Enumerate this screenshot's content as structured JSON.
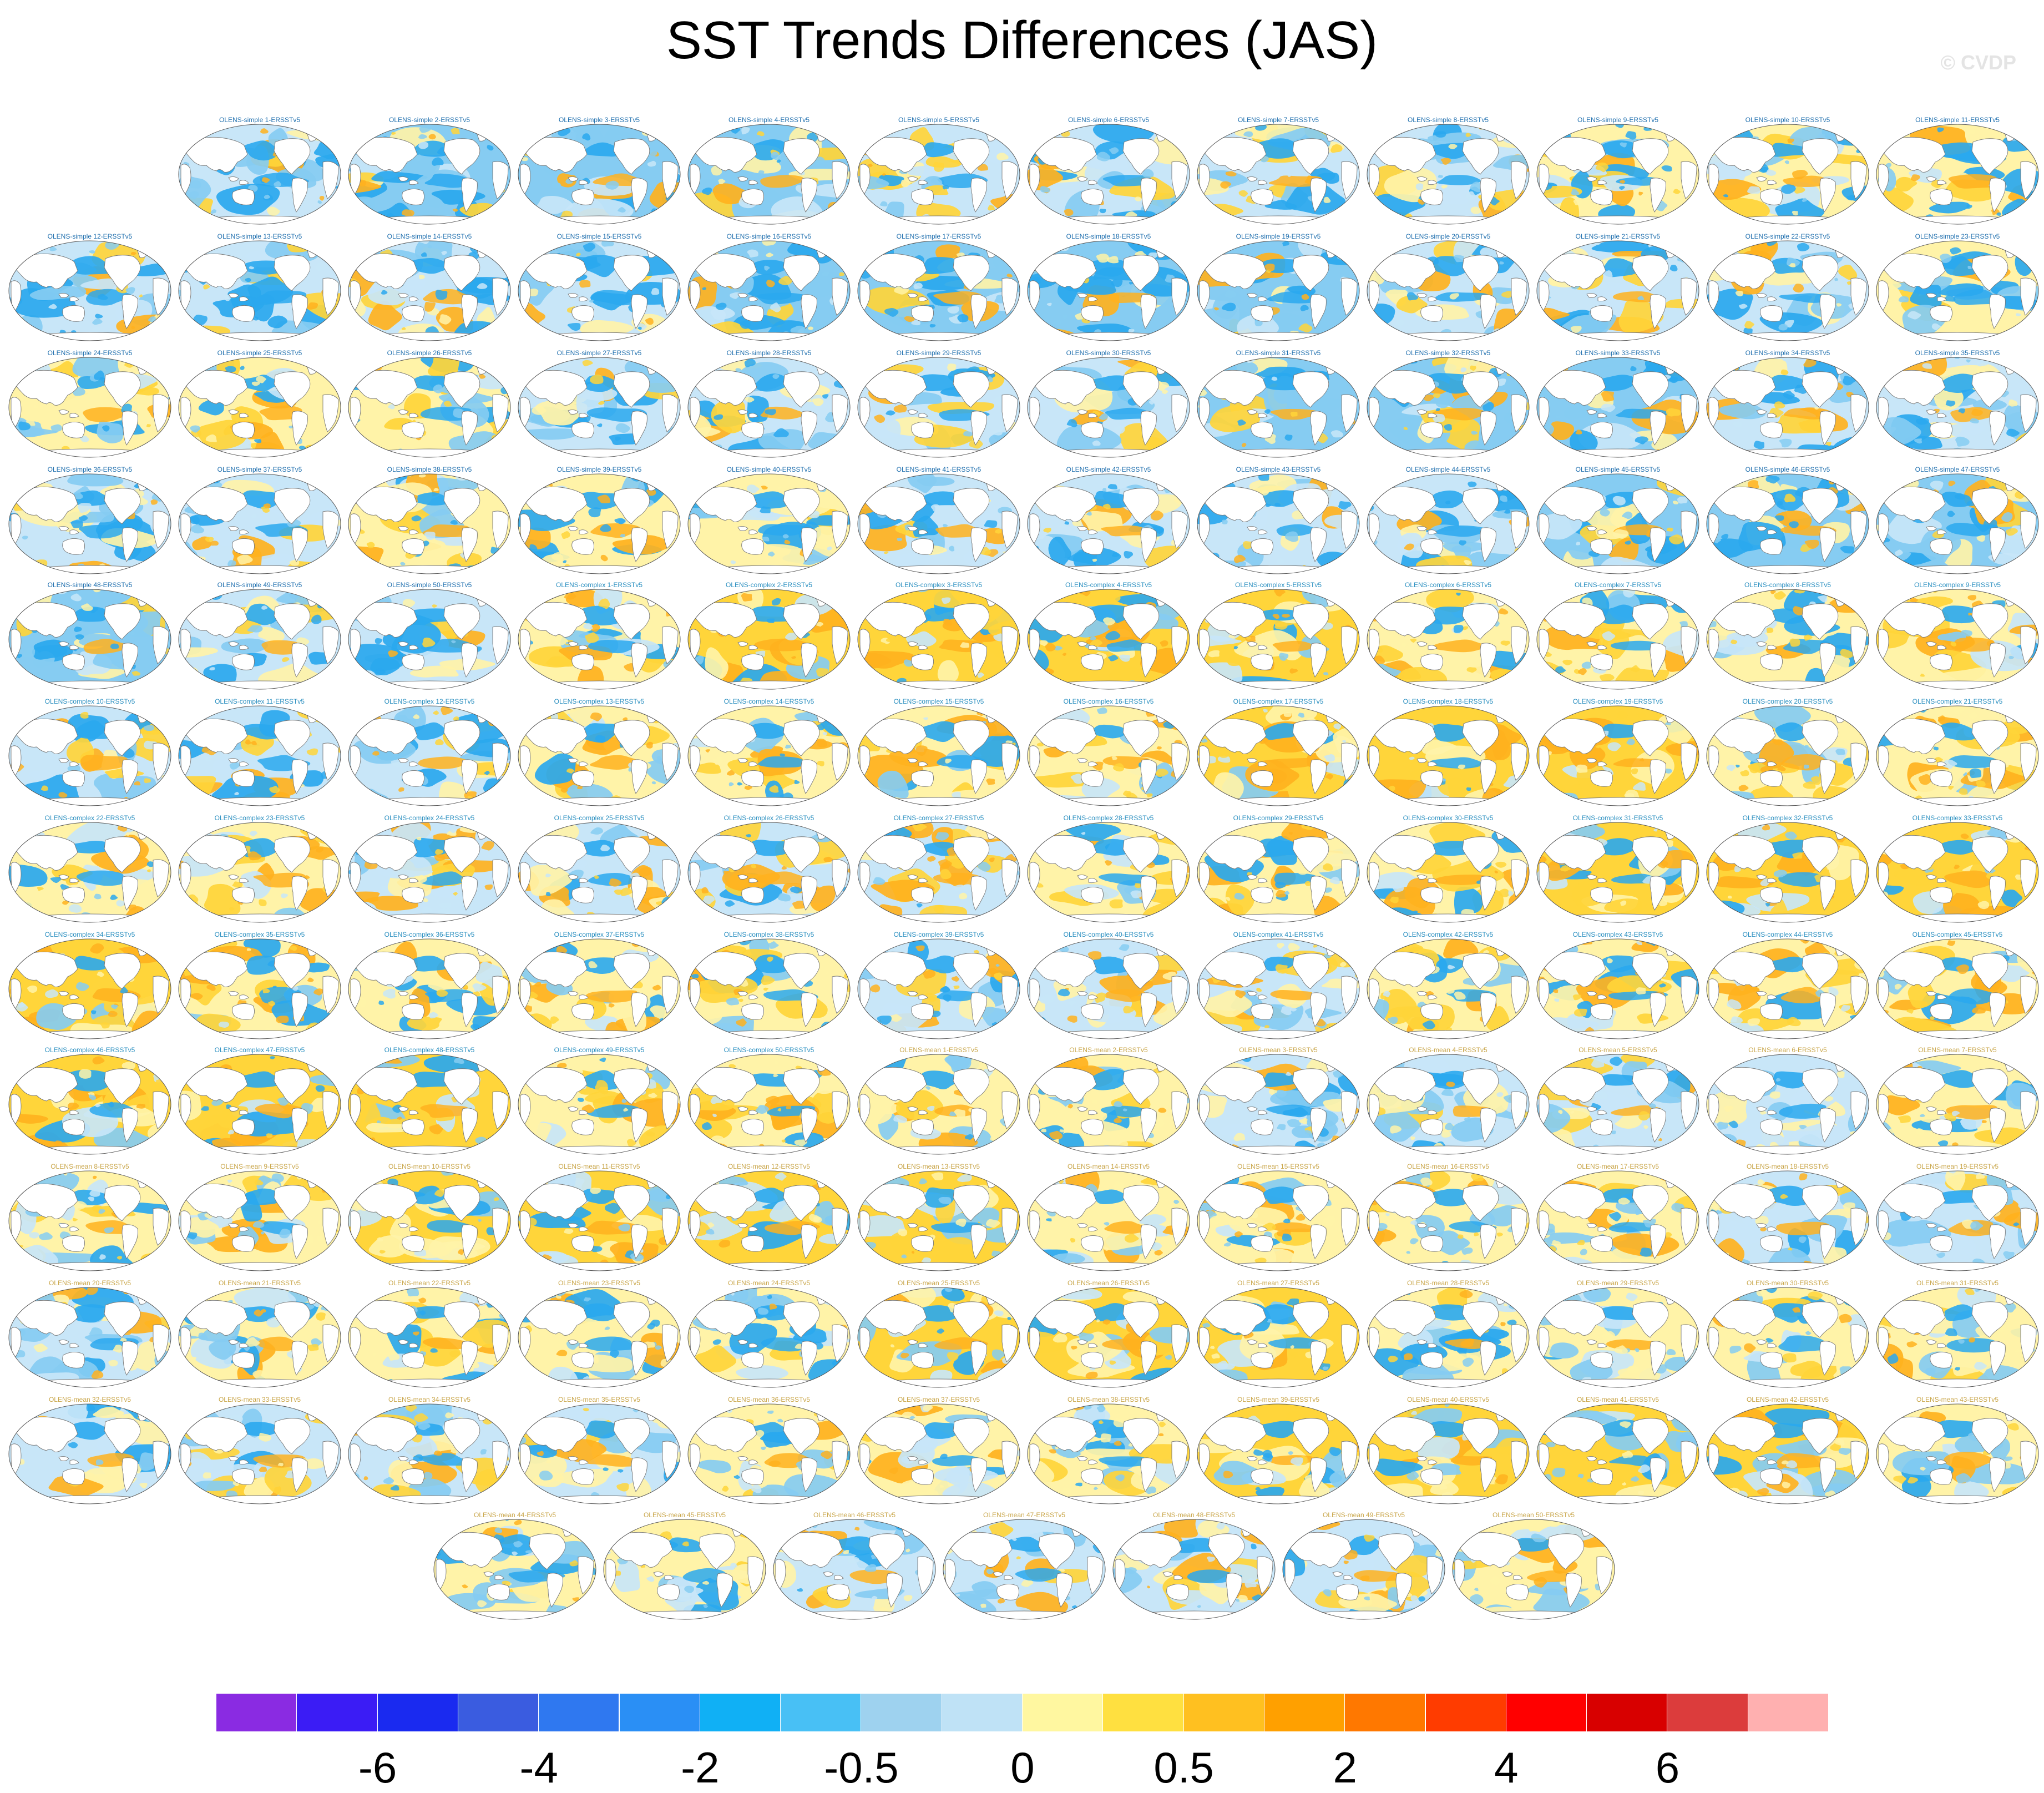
{
  "title": "SST Trends Differences (JAS)",
  "watermark": "© CVDP",
  "title_colors": {
    "simple": "#1f6fae",
    "complex": "#2a8fc0",
    "mean": "#c9a64a"
  },
  "panels": [
    "OLENS-simple 1-ERSSTv5",
    "OLENS-simple 2-ERSSTv5",
    "OLENS-simple 3-ERSSTv5",
    "OLENS-simple 4-ERSSTv5",
    "OLENS-simple 5-ERSSTv5",
    "OLENS-simple 6-ERSSTv5",
    "OLENS-simple 7-ERSSTv5",
    "OLENS-simple 8-ERSSTv5",
    "OLENS-simple 9-ERSSTv5",
    "OLENS-simple 10-ERSSTv5",
    "OLENS-simple 11-ERSSTv5",
    "OLENS-simple 12-ERSSTv5",
    "OLENS-simple 13-ERSSTv5",
    "OLENS-simple 14-ERSSTv5",
    "OLENS-simple 15-ERSSTv5",
    "OLENS-simple 16-ERSSTv5",
    "OLENS-simple 17-ERSSTv5",
    "OLENS-simple 18-ERSSTv5",
    "OLENS-simple 19-ERSSTv5",
    "OLENS-simple 20-ERSSTv5",
    "OLENS-simple 21-ERSSTv5",
    "OLENS-simple 22-ERSSTv5",
    "OLENS-simple 23-ERSSTv5",
    "OLENS-simple 24-ERSSTv5",
    "OLENS-simple 25-ERSSTv5",
    "OLENS-simple 26-ERSSTv5",
    "OLENS-simple 27-ERSSTv5",
    "OLENS-simple 28-ERSSTv5",
    "OLENS-simple 29-ERSSTv5",
    "OLENS-simple 30-ERSSTv5",
    "OLENS-simple 31-ERSSTv5",
    "OLENS-simple 32-ERSSTv5",
    "OLENS-simple 33-ERSSTv5",
    "OLENS-simple 34-ERSSTv5",
    "OLENS-simple 35-ERSSTv5",
    "OLENS-simple 36-ERSSTv5",
    "OLENS-simple 37-ERSSTv5",
    "OLENS-simple 38-ERSSTv5",
    "OLENS-simple 39-ERSSTv5",
    "OLENS-simple 40-ERSSTv5",
    "OLENS-simple 41-ERSSTv5",
    "OLENS-simple 42-ERSSTv5",
    "OLENS-simple 43-ERSSTv5",
    "OLENS-simple 44-ERSSTv5",
    "OLENS-simple 45-ERSSTv5",
    "OLENS-simple 46-ERSSTv5",
    "OLENS-simple 47-ERSSTv5",
    "OLENS-simple 48-ERSSTv5",
    "OLENS-simple 49-ERSSTv5",
    "OLENS-simple 50-ERSSTv5",
    "OLENS-complex 1-ERSSTv5",
    "OLENS-complex 2-ERSSTv5",
    "OLENS-complex 3-ERSSTv5",
    "OLENS-complex 4-ERSSTv5",
    "OLENS-complex 5-ERSSTv5",
    "OLENS-complex 6-ERSSTv5",
    "OLENS-complex 7-ERSSTv5",
    "OLENS-complex 8-ERSSTv5",
    "OLENS-complex 9-ERSSTv5",
    "OLENS-complex 10-ERSSTv5",
    "OLENS-complex 11-ERSSTv5",
    "OLENS-complex 12-ERSSTv5",
    "OLENS-complex 13-ERSSTv5",
    "OLENS-complex 14-ERSSTv5",
    "OLENS-complex 15-ERSSTv5",
    "OLENS-complex 16-ERSSTv5",
    "OLENS-complex 17-ERSSTv5",
    "OLENS-complex 18-ERSSTv5",
    "OLENS-complex 19-ERSSTv5",
    "OLENS-complex 20-ERSSTv5",
    "OLENS-complex 21-ERSSTv5",
    "OLENS-complex 22-ERSSTv5",
    "OLENS-complex 23-ERSSTv5",
    "OLENS-complex 24-ERSSTv5",
    "OLENS-complex 25-ERSSTv5",
    "OLENS-complex 26-ERSSTv5",
    "OLENS-complex 27-ERSSTv5",
    "OLENS-complex 28-ERSSTv5",
    "OLENS-complex 29-ERSSTv5",
    "OLENS-complex 30-ERSSTv5",
    "OLENS-complex 31-ERSSTv5",
    "OLENS-complex 32-ERSSTv5",
    "OLENS-complex 33-ERSSTv5",
    "OLENS-complex 34-ERSSTv5",
    "OLENS-complex 35-ERSSTv5",
    "OLENS-complex 36-ERSSTv5",
    "OLENS-complex 37-ERSSTv5",
    "OLENS-complex 38-ERSSTv5",
    "OLENS-complex 39-ERSSTv5",
    "OLENS-complex 40-ERSSTv5",
    "OLENS-complex 41-ERSSTv5",
    "OLENS-complex 42-ERSSTv5",
    "OLENS-complex 43-ERSSTv5",
    "OLENS-complex 44-ERSSTv5",
    "OLENS-complex 45-ERSSTv5",
    "OLENS-complex 46-ERSSTv5",
    "OLENS-complex 47-ERSSTv5",
    "OLENS-complex 48-ERSSTv5",
    "OLENS-complex 49-ERSSTv5",
    "OLENS-complex 50-ERSSTv5",
    "OLENS-mean 1-ERSSTv5",
    "OLENS-mean 2-ERSSTv5",
    "OLENS-mean 3-ERSSTv5",
    "OLENS-mean 4-ERSSTv5",
    "OLENS-mean 5-ERSSTv5",
    "OLENS-mean 6-ERSSTv5",
    "OLENS-mean 7-ERSSTv5",
    "OLENS-mean 8-ERSSTv5",
    "OLENS-mean 9-ERSSTv5",
    "OLENS-mean 10-ERSSTv5",
    "OLENS-mean 11-ERSSTv5",
    "OLENS-mean 12-ERSSTv5",
    "OLENS-mean 13-ERSSTv5",
    "OLENS-mean 14-ERSSTv5",
    "OLENS-mean 15-ERSSTv5",
    "OLENS-mean 16-ERSSTv5",
    "OLENS-mean 17-ERSSTv5",
    "OLENS-mean 18-ERSSTv5",
    "OLENS-mean 19-ERSSTv5",
    "OLENS-mean 20-ERSSTv5",
    "OLENS-mean 21-ERSSTv5",
    "OLENS-mean 22-ERSSTv5",
    "OLENS-mean 23-ERSSTv5",
    "OLENS-mean 24-ERSSTv5",
    "OLENS-mean 25-ERSSTv5",
    "OLENS-mean 26-ERSSTv5",
    "OLENS-mean 27-ERSSTv5",
    "OLENS-mean 28-ERSSTv5",
    "OLENS-mean 29-ERSSTv5",
    "OLENS-mean 30-ERSSTv5",
    "OLENS-mean 31-ERSSTv5",
    "OLENS-mean 32-ERSSTv5",
    "OLENS-mean 33-ERSSTv5",
    "OLENS-mean 34-ERSSTv5",
    "OLENS-mean 35-ERSSTv5",
    "OLENS-mean 36-ERSSTv5",
    "OLENS-mean 37-ERSSTv5",
    "OLENS-mean 38-ERSSTv5",
    "OLENS-mean 39-ERSSTv5",
    "OLENS-mean 40-ERSSTv5",
    "OLENS-mean 41-ERSSTv5",
    "OLENS-mean 42-ERSSTv5",
    "OLENS-mean 43-ERSSTv5",
    "OLENS-mean 44-ERSSTv5",
    "OLENS-mean 45-ERSSTv5",
    "OLENS-mean 46-ERSSTv5",
    "OLENS-mean 47-ERSSTv5",
    "OLENS-mean 48-ERSSTv5",
    "OLENS-mean 49-ERSSTv5",
    "OLENS-mean 50-ERSSTv5"
  ],
  "row_counts": [
    11,
    12,
    12,
    12,
    12,
    12,
    12,
    12,
    12,
    12,
    12,
    12,
    7
  ],
  "colorbar": {
    "colors": [
      "#8a2be2",
      "#3b1cf5",
      "#1a2af0",
      "#3a5ce0",
      "#2f78f0",
      "#2a8ff5",
      "#10b0f5",
      "#48c0f5",
      "#9ed2ef",
      "#bfe2f6",
      "#fff7a0",
      "#ffe040",
      "#ffc020",
      "#ffa000",
      "#ff7800",
      "#ff3c00",
      "#ff0000",
      "#d80000",
      "#dc3c3c",
      "#ffb0b0"
    ],
    "labels": [
      "-6",
      "-4",
      "-2",
      "-0.5",
      "0",
      "0.5",
      "2",
      "4",
      "6"
    ],
    "label_boundaries": [
      2,
      4,
      6,
      8,
      10,
      12,
      14,
      16,
      18
    ]
  },
  "map_palette": {
    "cold": "#2aa8ee",
    "cool": "#86ccf2",
    "pale": "#c8e6f8",
    "neutral": "#fff3a8",
    "warm": "#ffd53a",
    "hot": "#ffb21e",
    "land": "#ffffff",
    "coast": "#777777"
  }
}
